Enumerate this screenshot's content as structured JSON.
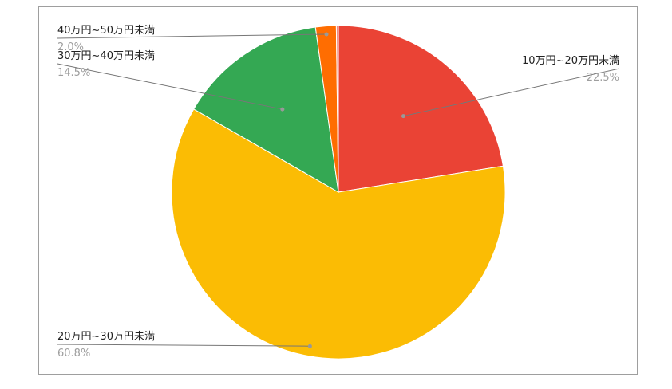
{
  "chart_data": {
    "type": "pie",
    "title": "",
    "start": "top",
    "direction": "clockwise",
    "slices": [
      {
        "label": "10万円~20万円未満",
        "value": 22.5,
        "display": "22.5%",
        "color": "#ea4335",
        "label_side": "right"
      },
      {
        "label": "20万円~30万円未満",
        "value": 60.8,
        "display": "60.8%",
        "color": "#fbbc04",
        "label_side": "left"
      },
      {
        "label": "30万円~40万円未満",
        "value": 14.5,
        "display": "14.5%",
        "color": "#34a853",
        "label_side": "left"
      },
      {
        "label": "40万円~50万円未満",
        "value": 2.0,
        "display": "2.0%",
        "color": "#ff6d01",
        "label_side": "left"
      },
      {
        "label": "",
        "value": 0.2,
        "display": "",
        "color": "#f28b82",
        "label_side": "none"
      }
    ]
  }
}
